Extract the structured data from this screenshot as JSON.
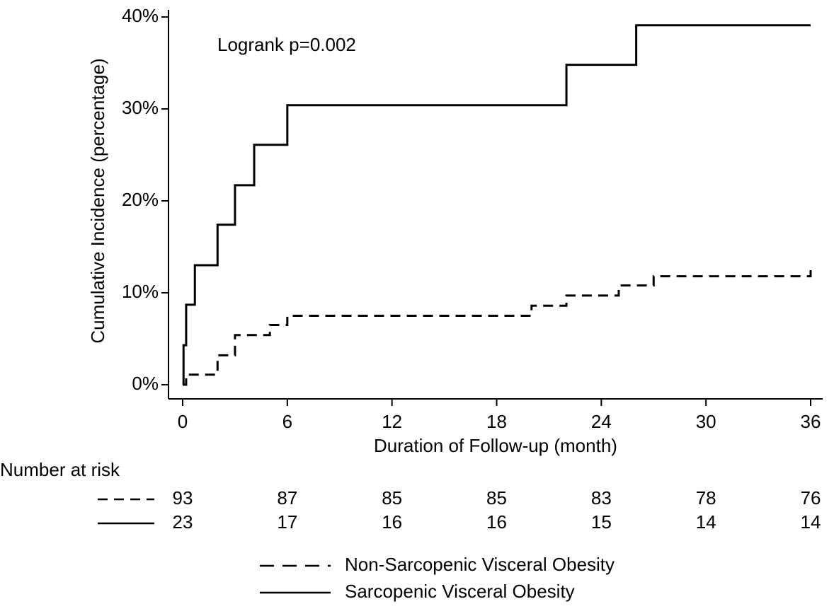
{
  "chart_data": {
    "type": "line",
    "step": true,
    "y_label": "Cumulative Incidence (percentage)",
    "x_label": "Duration of Follow-up (month)",
    "annotation": "Logrank p=0.002",
    "xlim": [
      0,
      36
    ],
    "xticks": [
      0,
      6,
      12,
      18,
      24,
      30,
      36
    ],
    "ylim": [
      0,
      40
    ],
    "yticks": [
      {
        "value": 0,
        "label": "0%"
      },
      {
        "value": 10,
        "label": "10%"
      },
      {
        "value": 20,
        "label": "20%"
      },
      {
        "value": 30,
        "label": "30%"
      },
      {
        "value": 40,
        "label": "40%"
      }
    ],
    "series": [
      {
        "name": "Non-Sarcopenic Visceral Obesity",
        "color": "#000000",
        "dash": true,
        "x": [
          0,
          0.2,
          2,
          3,
          5,
          6,
          20,
          22,
          25,
          27,
          36
        ],
        "values": [
          0,
          1.1,
          3.2,
          5.4,
          6.5,
          7.5,
          8.6,
          9.7,
          10.8,
          11.8,
          12.9
        ]
      },
      {
        "name": "Sarcopenic Visceral Obesity",
        "color": "#000000",
        "dash": false,
        "x": [
          0,
          0.05,
          0.2,
          0.7,
          2,
          3,
          4.1,
          6,
          22,
          26,
          36
        ],
        "values": [
          0,
          4.3,
          8.7,
          13.0,
          17.4,
          21.7,
          26.1,
          30.4,
          34.8,
          39.1,
          39.1
        ]
      }
    ],
    "risk_table": {
      "title": "Number at risk",
      "rows": [
        [
          93,
          87,
          85,
          85,
          83,
          78,
          76
        ],
        [
          23,
          17,
          16,
          16,
          15,
          14,
          14
        ]
      ]
    }
  }
}
